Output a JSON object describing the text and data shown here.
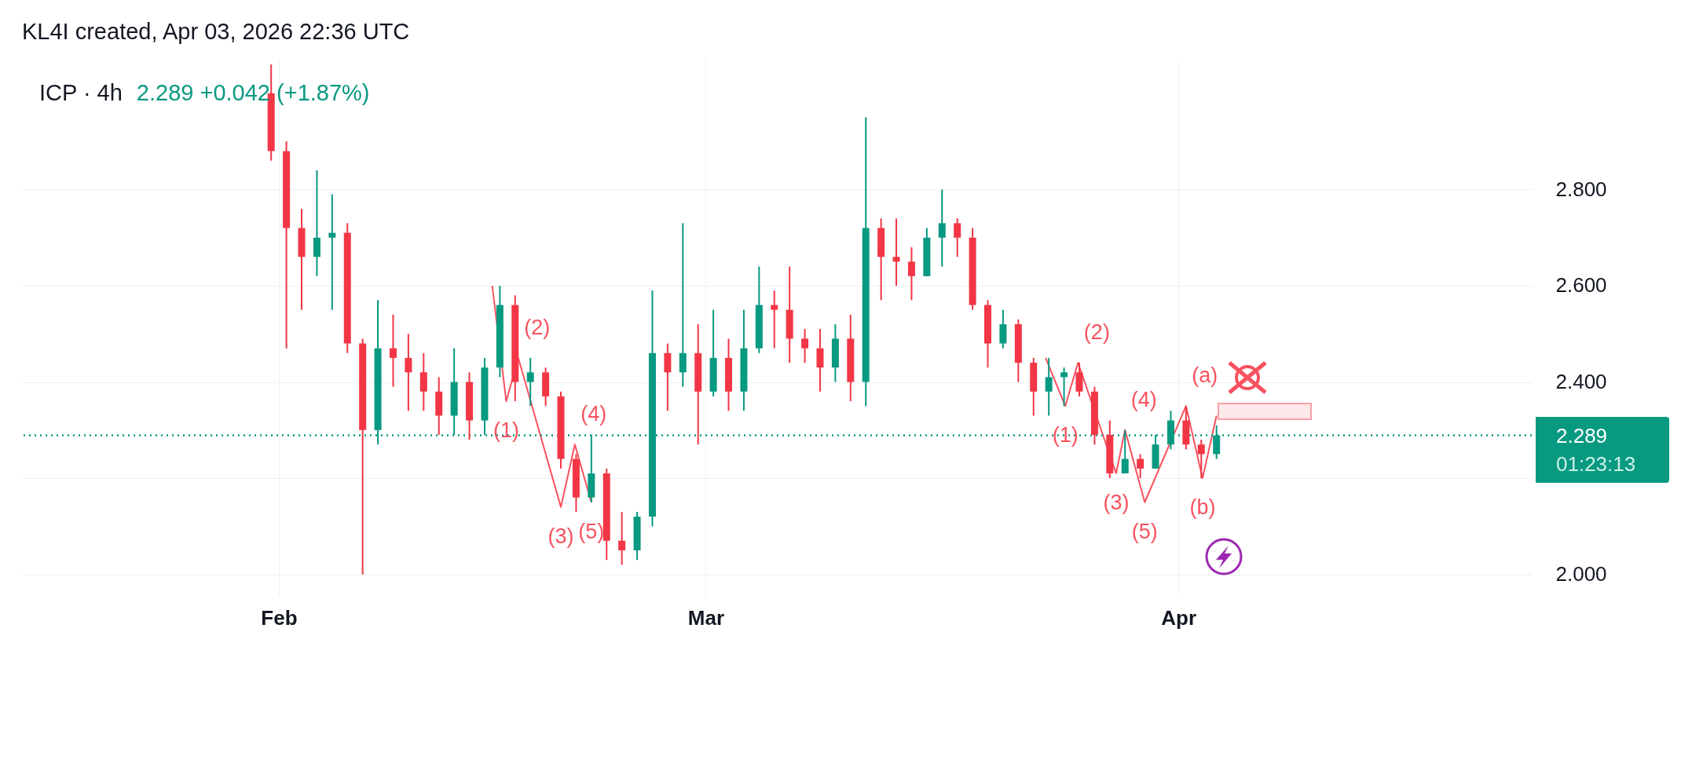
{
  "chart_data": {
    "type": "candlestick",
    "title": "KL4I created, Apr 03, 2026 22:36 UTC",
    "subtitle": "ICP · 4h",
    "x": [
      "2026-01-31T12:00",
      "2026-02-01T12:00",
      "2026-02-02T12:00",
      "2026-02-03T12:00",
      "2026-02-04T12:00",
      "2026-02-05T12:00",
      "2026-02-06T12:00",
      "2026-02-07T12:00",
      "2026-02-08T12:00",
      "2026-02-09T12:00",
      "2026-02-10T12:00",
      "2026-02-11T12:00",
      "2026-02-12T12:00",
      "2026-02-13T12:00",
      "2026-02-14T12:00",
      "2026-02-15T12:00",
      "2026-02-16T12:00",
      "2026-02-17T12:00",
      "2026-02-18T12:00",
      "2026-02-19T12:00",
      "2026-02-20T12:00",
      "2026-02-21T12:00",
      "2026-02-22T12:00",
      "2026-02-23T12:00",
      "2026-02-24T12:00",
      "2026-02-25T12:00",
      "2026-02-26T12:00",
      "2026-02-27T12:00",
      "2026-02-28T12:00",
      "2026-03-01T12:00",
      "2026-03-02T12:00",
      "2026-03-03T12:00",
      "2026-03-04T12:00",
      "2026-03-05T12:00",
      "2026-03-06T12:00",
      "2026-03-07T12:00",
      "2026-03-08T12:00",
      "2026-03-09T12:00",
      "2026-03-10T12:00",
      "2026-03-11T12:00",
      "2026-03-12T12:00",
      "2026-03-13T12:00",
      "2026-03-14T12:00",
      "2026-03-15T12:00",
      "2026-03-16T12:00",
      "2026-03-17T12:00",
      "2026-03-18T12:00",
      "2026-03-19T12:00",
      "2026-03-20T12:00",
      "2026-03-21T12:00",
      "2026-03-22T12:00",
      "2026-03-23T12:00",
      "2026-03-24T12:00",
      "2026-03-25T12:00",
      "2026-03-26T12:00",
      "2026-03-27T12:00",
      "2026-03-28T12:00",
      "2026-03-29T12:00",
      "2026-03-30T12:00",
      "2026-03-31T12:00",
      "2026-04-01T12:00",
      "2026-04-02T12:00",
      "2026-04-03T12:00"
    ],
    "ohlc": [
      [
        3.0,
        3.06,
        2.86,
        2.88
      ],
      [
        2.88,
        2.9,
        2.47,
        2.72
      ],
      [
        2.72,
        2.76,
        2.55,
        2.66
      ],
      [
        2.66,
        2.84,
        2.62,
        2.7
      ],
      [
        2.7,
        2.79,
        2.55,
        2.71
      ],
      [
        2.71,
        2.73,
        2.46,
        2.48
      ],
      [
        2.48,
        2.49,
        2.0,
        2.3
      ],
      [
        2.3,
        2.57,
        2.27,
        2.47
      ],
      [
        2.47,
        2.54,
        2.39,
        2.45
      ],
      [
        2.45,
        2.5,
        2.34,
        2.42
      ],
      [
        2.42,
        2.46,
        2.34,
        2.38
      ],
      [
        2.38,
        2.41,
        2.29,
        2.33
      ],
      [
        2.33,
        2.47,
        2.29,
        2.4
      ],
      [
        2.4,
        2.42,
        2.28,
        2.32
      ],
      [
        2.32,
        2.45,
        2.29,
        2.43
      ],
      [
        2.43,
        2.6,
        2.41,
        2.56
      ],
      [
        2.56,
        2.58,
        2.36,
        2.4
      ],
      [
        2.4,
        2.45,
        2.35,
        2.42
      ],
      [
        2.42,
        2.43,
        2.35,
        2.37
      ],
      [
        2.37,
        2.38,
        2.22,
        2.24
      ],
      [
        2.24,
        2.25,
        2.13,
        2.16
      ],
      [
        2.16,
        2.29,
        2.15,
        2.21
      ],
      [
        2.21,
        2.22,
        2.03,
        2.07
      ],
      [
        2.07,
        2.13,
        2.02,
        2.05
      ],
      [
        2.05,
        2.13,
        2.03,
        2.12
      ],
      [
        2.12,
        2.59,
        2.1,
        2.46
      ],
      [
        2.46,
        2.48,
        2.34,
        2.42
      ],
      [
        2.42,
        2.73,
        2.39,
        2.46
      ],
      [
        2.46,
        2.52,
        2.27,
        2.38
      ],
      [
        2.38,
        2.55,
        2.37,
        2.45
      ],
      [
        2.45,
        2.49,
        2.34,
        2.38
      ],
      [
        2.38,
        2.55,
        2.34,
        2.47
      ],
      [
        2.47,
        2.64,
        2.46,
        2.56
      ],
      [
        2.56,
        2.59,
        2.47,
        2.55
      ],
      [
        2.55,
        2.64,
        2.44,
        2.49
      ],
      [
        2.49,
        2.51,
        2.44,
        2.47
      ],
      [
        2.47,
        2.51,
        2.38,
        2.43
      ],
      [
        2.43,
        2.52,
        2.4,
        2.49
      ],
      [
        2.49,
        2.54,
        2.36,
        2.4
      ],
      [
        2.4,
        2.95,
        2.35,
        2.72
      ],
      [
        2.72,
        2.74,
        2.57,
        2.66
      ],
      [
        2.66,
        2.74,
        2.6,
        2.65
      ],
      [
        2.65,
        2.68,
        2.57,
        2.62
      ],
      [
        2.62,
        2.72,
        2.62,
        2.7
      ],
      [
        2.7,
        2.8,
        2.64,
        2.73
      ],
      [
        2.73,
        2.74,
        2.66,
        2.7
      ],
      [
        2.7,
        2.72,
        2.55,
        2.56
      ],
      [
        2.56,
        2.57,
        2.43,
        2.48
      ],
      [
        2.48,
        2.55,
        2.47,
        2.52
      ],
      [
        2.52,
        2.53,
        2.4,
        2.44
      ],
      [
        2.44,
        2.45,
        2.33,
        2.38
      ],
      [
        2.38,
        2.45,
        2.33,
        2.41
      ],
      [
        2.41,
        2.43,
        2.35,
        2.42
      ],
      [
        2.42,
        2.44,
        2.37,
        2.38
      ],
      [
        2.38,
        2.39,
        2.27,
        2.29
      ],
      [
        2.29,
        2.32,
        2.2,
        2.21
      ],
      [
        2.21,
        2.3,
        2.21,
        2.24
      ],
      [
        2.24,
        2.25,
        2.2,
        2.22
      ],
      [
        2.22,
        2.29,
        2.22,
        2.27
      ],
      [
        2.27,
        2.34,
        2.26,
        2.32
      ],
      [
        2.32,
        2.35,
        2.26,
        2.27
      ],
      [
        2.27,
        2.28,
        2.2,
        2.25
      ],
      [
        2.25,
        2.31,
        2.24,
        2.289
      ]
    ],
    "colors": [
      "#f23645",
      "#f23645",
      "#f23645",
      "#089981",
      "#089981",
      "#f23645",
      "#f23645",
      "#089981",
      "#f23645",
      "#f23645",
      "#f23645",
      "#f23645",
      "#089981",
      "#f23645",
      "#089981",
      "#089981",
      "#f23645",
      "#089981",
      "#f23645",
      "#f23645",
      "#f23645",
      "#089981",
      "#f23645",
      "#f23645",
      "#089981",
      "#089981",
      "#f23645",
      "#089981",
      "#f23645",
      "#089981",
      "#f23645",
      "#089981",
      "#089981",
      "#f23645",
      "#f23645",
      "#f23645",
      "#f23645",
      "#089981",
      "#f23645",
      "#089981",
      "#f23645",
      "#f23645",
      "#f23645",
      "#089981",
      "#089981",
      "#f23645",
      "#f23645",
      "#f23645",
      "#089981",
      "#f23645",
      "#f23645",
      "#089981",
      "#089981",
      "#f23645",
      "#f23645",
      "#f23645",
      "#089981",
      "#f23645",
      "#089981",
      "#089981",
      "#f23645",
      "#f23645",
      "#089981"
    ],
    "series": [
      {
        "type": "line",
        "color": "#f7525f",
        "x": [
          "2026-02-15T00:00",
          "2026-02-15T22:00",
          "2026-02-16T17:00",
          "2026-02-19T12:00",
          "2026-02-20T10:00",
          "2026-02-21T12:00"
        ],
        "values": [
          2.6,
          2.36,
          2.45,
          2.14,
          2.27,
          2.15
        ]
      },
      {
        "type": "line",
        "color": "#f7525f",
        "x": [
          "2026-03-23T07:00",
          "2026-03-24T14:00",
          "2026-03-25T10:00",
          "2026-03-27T22:00",
          "2026-03-28T12:00",
          "2026-03-29T19:00",
          "2026-04-01T12:00",
          "2026-04-02T14:00",
          "2026-04-03T12:00"
        ],
        "values": [
          2.45,
          2.35,
          2.44,
          2.21,
          2.3,
          2.15,
          2.35,
          2.2,
          2.33
        ]
      }
    ],
    "xlim": [
      "2026-01-15T10:00",
      "2026-04-23T22:00"
    ],
    "xticks": [
      {
        "value": "2026-02-01",
        "label": "Feb"
      },
      {
        "value": "2026-03-01",
        "label": "Mar"
      },
      {
        "value": "2026-04-01",
        "label": "Apr"
      }
    ],
    "ylim": [
      1.957,
      3.07
    ],
    "yticks": [
      {
        "value": 2.0,
        "label": "2.000"
      },
      {
        "value": 2.2,
        "label": null
      },
      {
        "value": 2.4,
        "label": "2.400"
      },
      {
        "value": 2.6,
        "label": "2.600"
      },
      {
        "value": 2.8,
        "label": "2.800"
      }
    ],
    "grid": true,
    "ref_lines": [
      {
        "axis": "y",
        "value": 2.289,
        "label": "2.289",
        "color": "#089981",
        "line_style": "dotted"
      }
    ],
    "annotations": [
      "2.289  +0.042 (+1.87%)",
      "01:23:13",
      {
        "text": "(1)",
        "x": "2026-02-15T22:00",
        "y": 2.36
      },
      {
        "text": "(2)",
        "x": "2026-02-16T17:00",
        "y": 2.45
      },
      {
        "text": "(3)",
        "x": "2026-02-19T12:00",
        "y": 2.14
      },
      {
        "text": "(4)",
        "x": "2026-02-20T10:00",
        "y": 2.27
      },
      {
        "text": "(5)",
        "x": "2026-02-21T12:00",
        "y": 2.15
      },
      {
        "text": "(1)",
        "x": "2026-03-24T14:00",
        "y": 2.35
      },
      {
        "text": "(2)",
        "x": "2026-03-25T10:00",
        "y": 2.44
      },
      {
        "text": "(3)",
        "x": "2026-03-27T22:00",
        "y": 2.21
      },
      {
        "text": "(4)",
        "x": "2026-03-28T12:00",
        "y": 2.3
      },
      {
        "text": "(5)",
        "x": "2026-03-29T19:00",
        "y": 2.15
      },
      {
        "text": "(a)",
        "x": "2026-04-01T12:00",
        "y": 2.35
      },
      {
        "text": "(b)",
        "x": "2026-04-02T14:00",
        "y": 2.2
      }
    ]
  }
}
